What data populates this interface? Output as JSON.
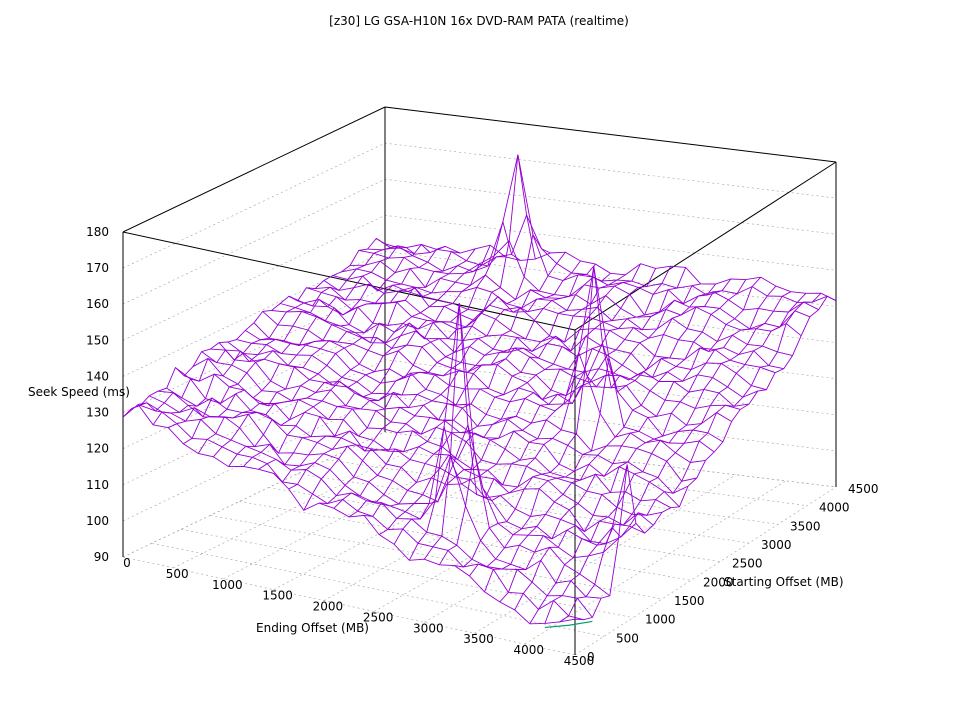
{
  "chart_data": {
    "type": "surface",
    "title": "[z30] LG GSA-H10N 16x DVD-RAM PATA (realtime)",
    "xlabel": "Ending Offset (MB)",
    "ylabel": "Starting Offset (MB)",
    "zlabel": "Seek Speed (ms)",
    "x_ticks": [
      "0",
      "500",
      "1000",
      "1500",
      "2000",
      "2500",
      "3000",
      "3500",
      "4000",
      "4500"
    ],
    "y_ticks": [
      "0",
      "500",
      "1000",
      "1500",
      "2000",
      "2500",
      "3000",
      "3500",
      "4000",
      "4500"
    ],
    "z_ticks": [
      "90",
      "100",
      "110",
      "120",
      "130",
      "140",
      "150",
      "160",
      "170",
      "180"
    ],
    "xlim": [
      0,
      4500
    ],
    "ylim": [
      0,
      4500
    ],
    "zlim": [
      90,
      180
    ],
    "grid_resolution": 30,
    "colors": {
      "mesh": "#9400d3",
      "underside": "#009e73",
      "box": "#000000",
      "grid": "#a0a0a0"
    },
    "corner_values": {
      "x0_y0": 131,
      "x4500_y0": 96,
      "x4500_y4500": 144,
      "x0_y4500": 143
    },
    "peaks": [
      {
        "ending_offset": 1500,
        "starting_offset": 4200,
        "seek_speed": 174
      },
      {
        "ending_offset": 3000,
        "starting_offset": 600,
        "seek_speed": 170
      },
      {
        "ending_offset": 3300,
        "starting_offset": 2400,
        "seek_speed": 168
      },
      {
        "ending_offset": 4500,
        "starting_offset": 900,
        "seek_speed": 135
      }
    ]
  }
}
